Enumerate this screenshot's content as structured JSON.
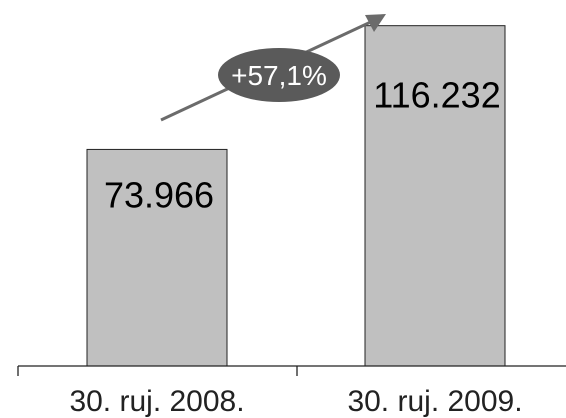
{
  "chart_data": {
    "type": "bar",
    "categories": [
      "30. ruj. 2008.",
      "30. ruj. 2009."
    ],
    "values": [
      73966,
      116232
    ],
    "value_labels": [
      "73.966",
      "116.232"
    ],
    "title": "",
    "xlabel": "",
    "ylabel": "",
    "ylim": [
      0,
      125000
    ],
    "grid": false,
    "legend": "none",
    "annotation": {
      "text": "+57,1%",
      "shape": "ellipse-on-upward-arrow",
      "color": "#5a5a5a"
    },
    "colors": {
      "bar_fill": "#c0c0c0",
      "bar_stroke": "#222222",
      "axis": "#222222",
      "arrow": "#6b6b6b"
    }
  }
}
